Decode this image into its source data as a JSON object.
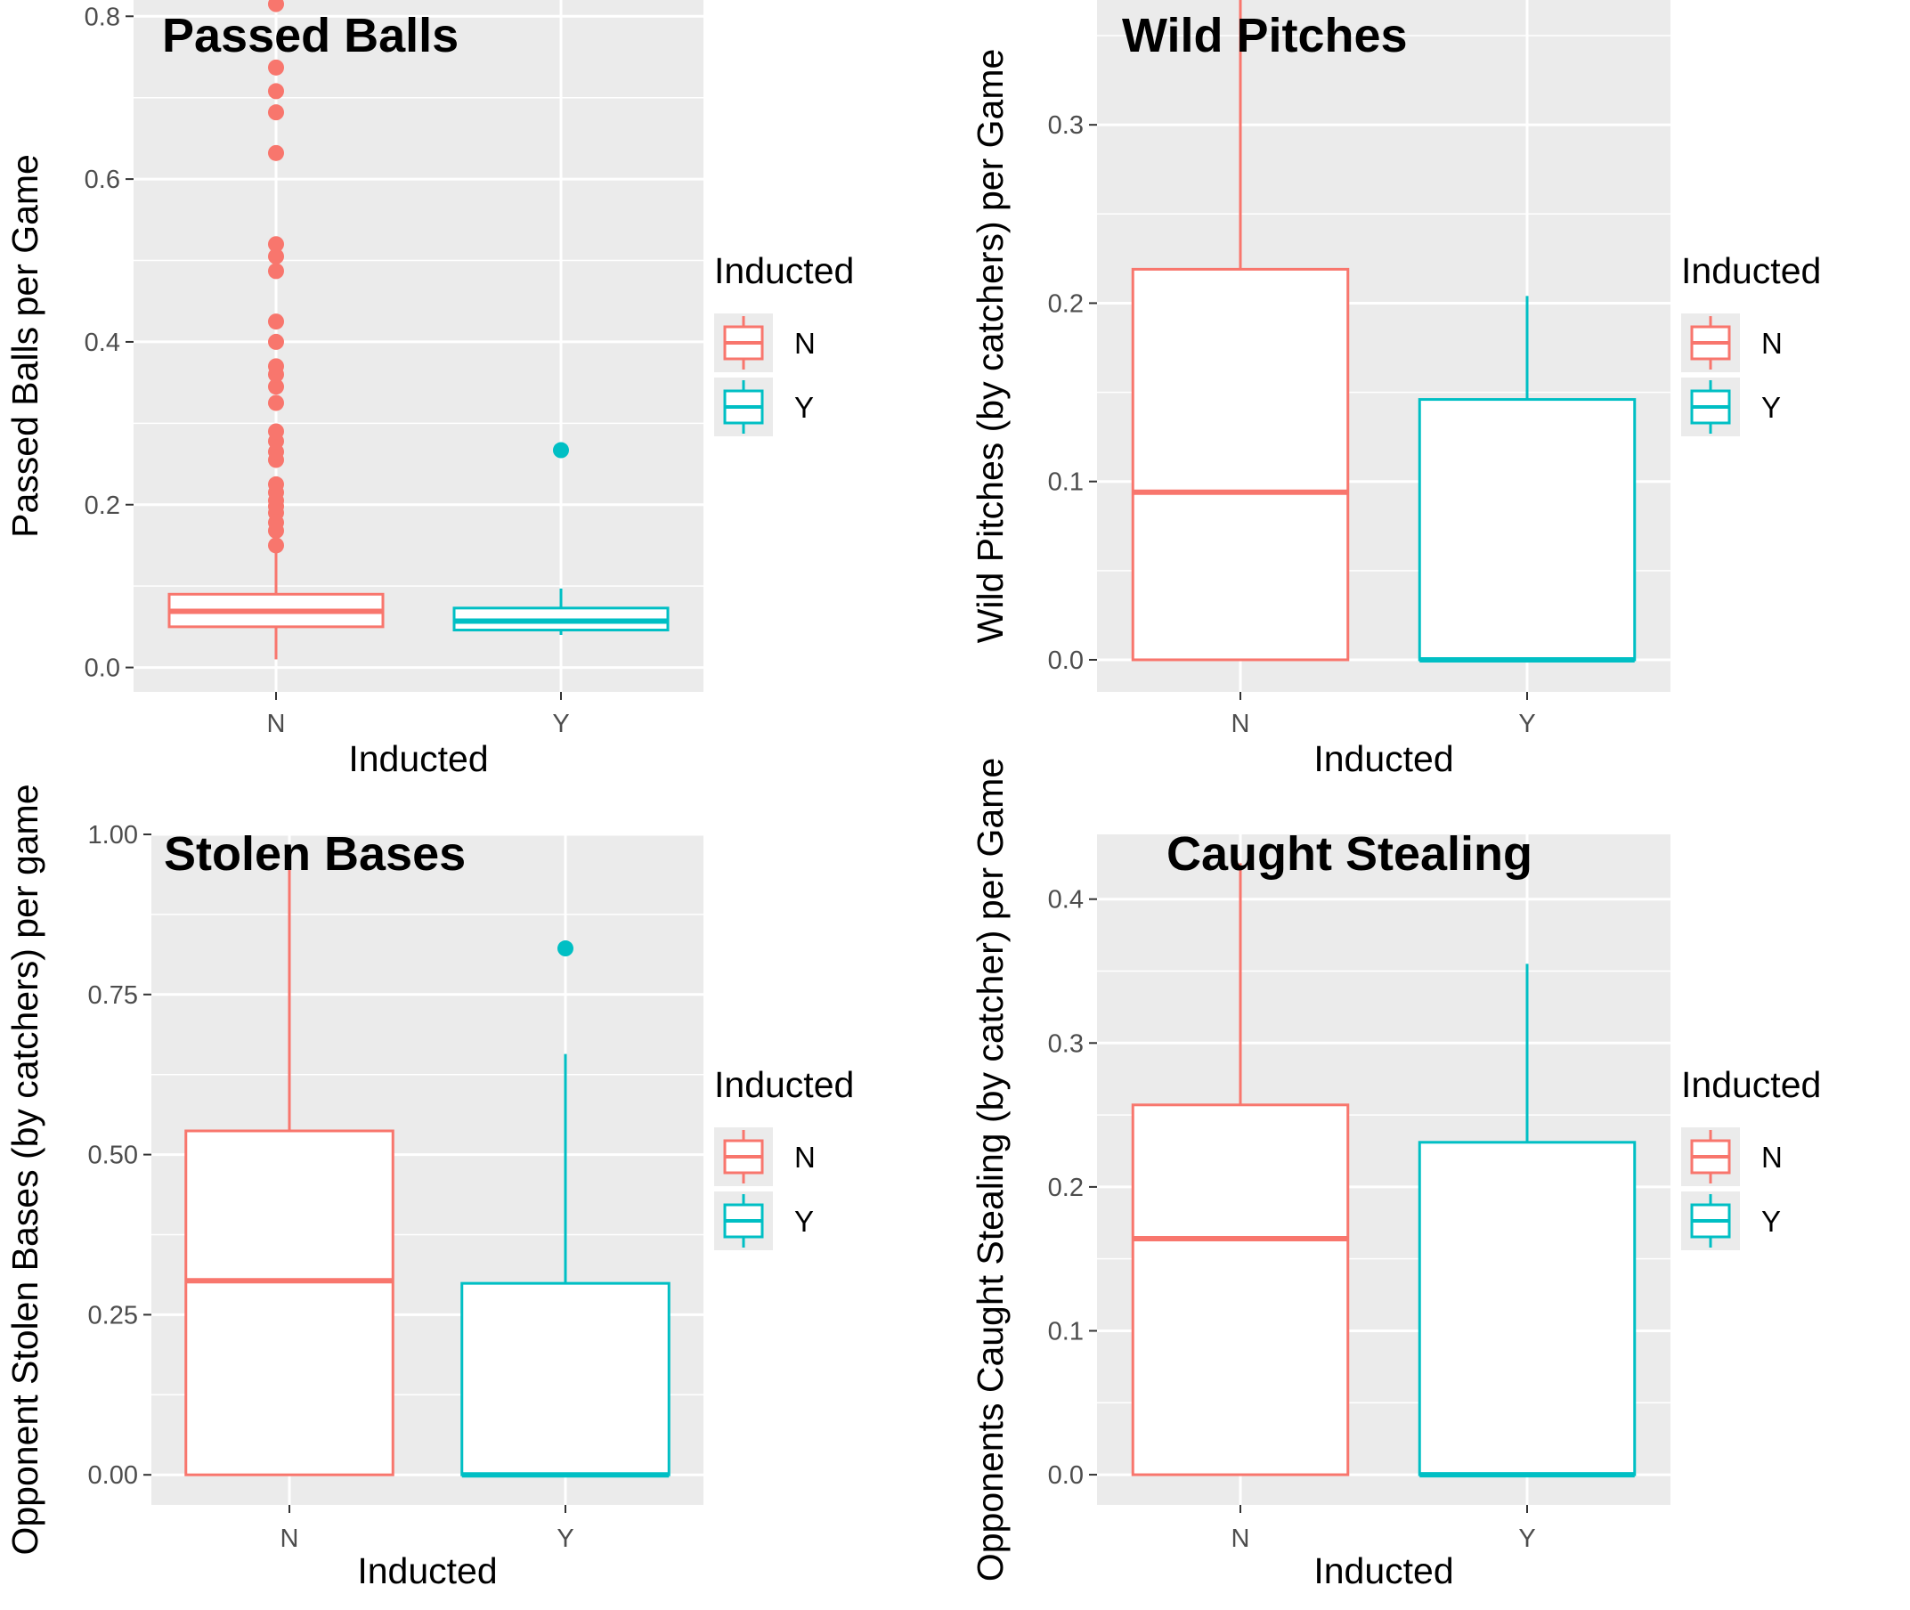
{
  "legend": {
    "title": "Inducted",
    "items": [
      {
        "label": "N",
        "color": "#F8766D"
      },
      {
        "label": "Y",
        "color": "#00BFC4"
      }
    ]
  },
  "colors": {
    "panel_bg": "#EBEBEB",
    "grid": "#FFFFFF",
    "N": "#F8766D",
    "Y": "#00BFC4"
  },
  "chart_data": [
    {
      "type": "boxplot",
      "title": "Passed Balls",
      "xlabel": "Inducted",
      "ylabel": "Passed Balls per Game",
      "categories": [
        "N",
        "Y"
      ],
      "ylim": [
        -0.03,
        0.82
      ],
      "yticks": [
        0.0,
        0.2,
        0.4,
        0.6,
        0.8
      ],
      "ytick_labels": [
        "0.0",
        "0.2",
        "0.4",
        "0.6",
        "0.8"
      ],
      "boxes": [
        {
          "category": "N",
          "min": 0.01,
          "q1": 0.05,
          "median": 0.069,
          "q3": 0.09,
          "max": 0.148,
          "outliers": [
            0.15,
            0.168,
            0.178,
            0.19,
            0.198,
            0.205,
            0.215,
            0.225,
            0.255,
            0.265,
            0.278,
            0.29,
            0.325,
            0.345,
            0.36,
            0.37,
            0.4,
            0.425,
            0.487,
            0.505,
            0.52,
            0.632,
            0.682,
            0.708,
            0.737,
            0.815
          ]
        },
        {
          "category": "Y",
          "min": 0.04,
          "q1": 0.046,
          "median": 0.057,
          "q3": 0.073,
          "max": 0.097,
          "outliers": [
            0.267
          ]
        }
      ]
    },
    {
      "type": "boxplot",
      "title": "Wild Pitches",
      "xlabel": "Inducted",
      "ylabel": "Wild Pitches (by catchers) per Game",
      "categories": [
        "N",
        "Y"
      ],
      "ylim": [
        -0.018,
        0.37
      ],
      "yticks": [
        0.0,
        0.1,
        0.2,
        0.3
      ],
      "ytick_labels": [
        "0.0",
        "0.1",
        "0.2",
        "0.3"
      ],
      "boxes": [
        {
          "category": "N",
          "min": 0.0,
          "q1": 0.0,
          "median": 0.094,
          "q3": 0.219,
          "max": 0.372,
          "outliers": []
        },
        {
          "category": "Y",
          "min": 0.0,
          "q1": 0.0,
          "median": 0.0,
          "q3": 0.146,
          "max": 0.204,
          "outliers": []
        }
      ]
    },
    {
      "type": "boxplot",
      "title": "Stolen Bases",
      "xlabel": "Inducted",
      "ylabel": "Opponent Stolen Bases (by catchers) per game",
      "categories": [
        "N",
        "Y"
      ],
      "ylim": [
        -0.047,
        1.0
      ],
      "yticks": [
        0.0,
        0.25,
        0.5,
        0.75,
        1.0
      ],
      "ytick_labels": [
        "0.00",
        "0.25",
        "0.50",
        "0.75",
        "1.00"
      ],
      "boxes": [
        {
          "category": "N",
          "min": 0.0,
          "q1": 0.0,
          "median": 0.303,
          "q3": 0.537,
          "max": 0.97,
          "outliers": []
        },
        {
          "category": "Y",
          "min": 0.0,
          "q1": 0.0,
          "median": 0.0,
          "q3": 0.299,
          "max": 0.657,
          "outliers": [
            0.822
          ]
        }
      ]
    },
    {
      "type": "boxplot",
      "title": "Caught Stealing",
      "xlabel": "Inducted",
      "ylabel": "Opponents Caught Stealing (by catcher) per Game",
      "categories": [
        "N",
        "Y"
      ],
      "ylim": [
        -0.021,
        0.445
      ],
      "yticks": [
        0.0,
        0.1,
        0.2,
        0.3,
        0.4
      ],
      "ytick_labels": [
        "0.0",
        "0.1",
        "0.2",
        "0.3",
        "0.4"
      ],
      "boxes": [
        {
          "category": "N",
          "min": 0.0,
          "q1": 0.0,
          "median": 0.164,
          "q3": 0.257,
          "max": 0.425,
          "outliers": []
        },
        {
          "category": "Y",
          "min": 0.0,
          "q1": 0.0,
          "median": 0.0,
          "q3": 0.231,
          "max": 0.355,
          "outliers": []
        }
      ]
    }
  ]
}
